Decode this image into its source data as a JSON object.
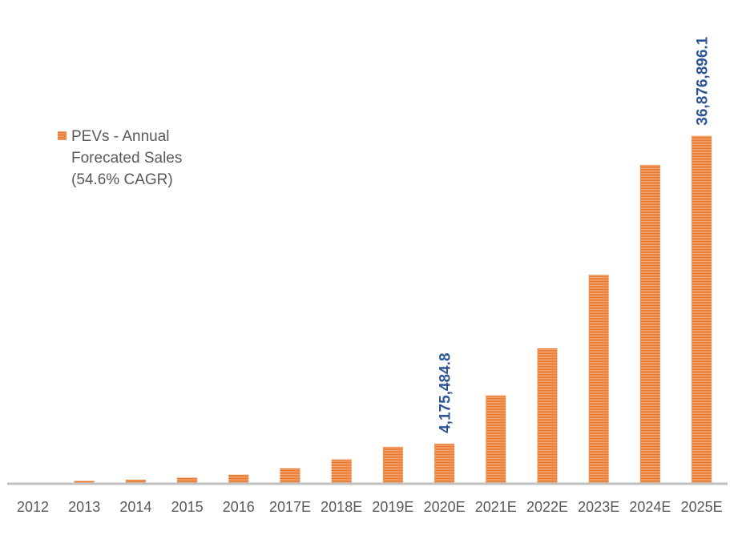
{
  "chart_data": {
    "type": "bar",
    "categories": [
      "2012",
      "2013",
      "2014",
      "2015",
      "2016",
      "2017E",
      "2018E",
      "2019E",
      "2020E",
      "2021E",
      "2022E",
      "2023E",
      "2024E",
      "2025E"
    ],
    "series": [
      {
        "name": "PEVs - Annual Forecated Sales (54.6% CAGR)",
        "values": [
          70000,
          220000,
          340000,
          560000,
          880000,
          1560000,
          2500000,
          3840000,
          4175484.8,
          9300000,
          14300000,
          22100000,
          33800000,
          36876896.1
        ]
      }
    ],
    "data_labels": [
      {
        "category": "2020E",
        "text": "4,175,484.8"
      },
      {
        "category": "2025E",
        "text": "36,876,896.1"
      }
    ],
    "ylim": [
      0,
      40000000
    ],
    "grid": false,
    "legend_position": "top-left",
    "colors": {
      "bar": "#ed7d31",
      "bar_light": "#f3a56f",
      "axis": "#bfbfbf",
      "label": "#2f5597",
      "tick": "#595959"
    }
  },
  "legend": {
    "label": "PEVs - Annual\nForecated Sales\n(54.6% CAGR)"
  }
}
